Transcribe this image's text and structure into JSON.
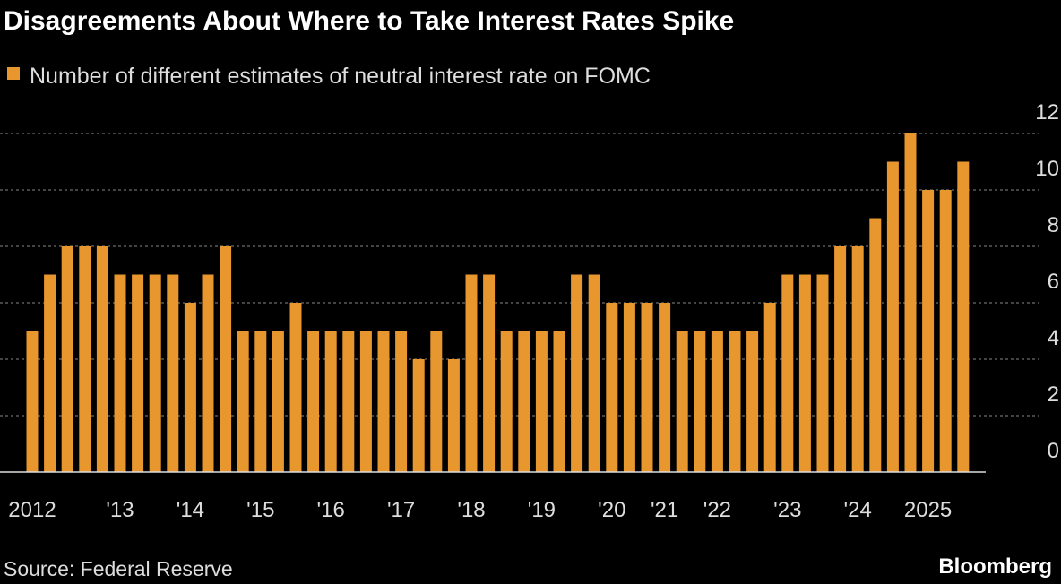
{
  "chart_data": {
    "type": "bar",
    "title": "Disagreements About Where to Take Interest Rates Spike",
    "categories": [
      "2012",
      null,
      null,
      null,
      null,
      "'13",
      null,
      null,
      null,
      "'14",
      null,
      null,
      null,
      "'15",
      null,
      null,
      null,
      "'16",
      null,
      null,
      null,
      "'17",
      null,
      null,
      null,
      "'18",
      null,
      null,
      null,
      "'19",
      null,
      null,
      null,
      "'20",
      null,
      null,
      "'21",
      null,
      null,
      "'22",
      null,
      null,
      null,
      "'23",
      null,
      null,
      null,
      "'24",
      null,
      null,
      null,
      "2025",
      null,
      null
    ],
    "series": [
      {
        "name": "Number of different estimates of neutral interest rate on FOMC",
        "color": "#e8962e",
        "values": [
          5,
          7,
          8,
          8,
          8,
          7,
          7,
          7,
          7,
          6,
          7,
          8,
          5,
          5,
          5,
          6,
          5,
          5,
          5,
          5,
          5,
          5,
          4,
          5,
          4,
          7,
          7,
          5,
          5,
          5,
          5,
          7,
          7,
          6,
          6,
          6,
          6,
          5,
          5,
          5,
          5,
          5,
          6,
          7,
          7,
          7,
          8,
          8,
          9,
          11,
          12,
          10,
          10,
          11
        ]
      }
    ],
    "ylim": [
      0,
      12
    ],
    "yticks": [
      0,
      2,
      4,
      6,
      8,
      10,
      12
    ],
    "grid": true,
    "source": "Source: Federal Reserve",
    "brand": "Bloomberg"
  }
}
